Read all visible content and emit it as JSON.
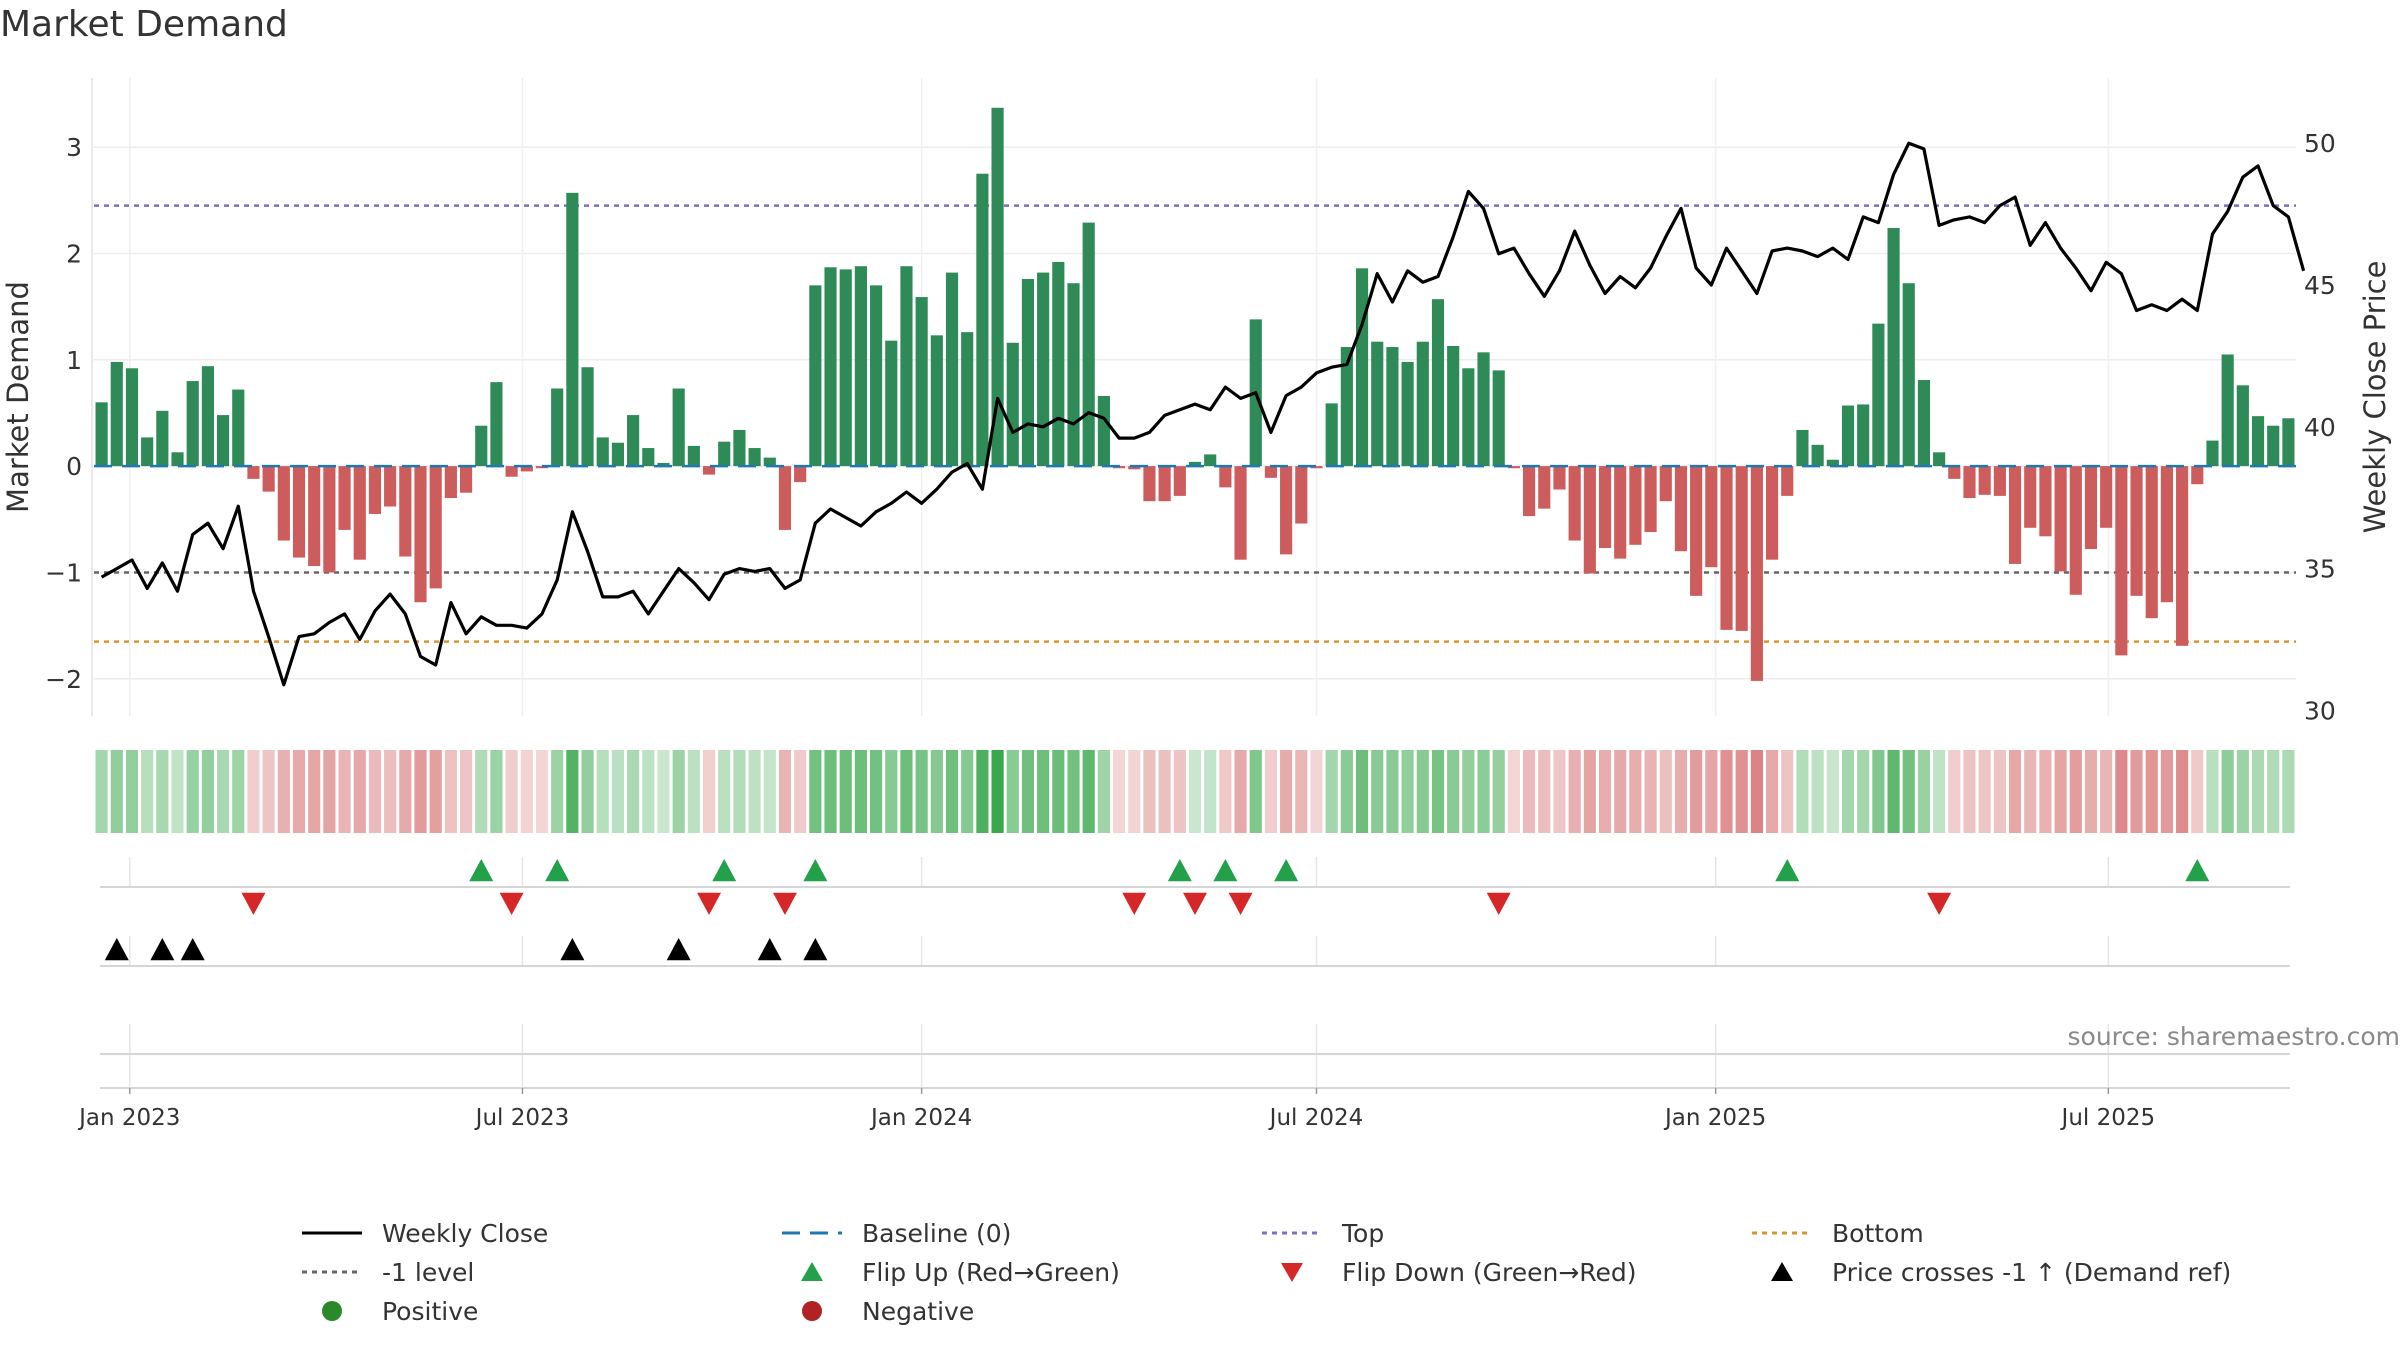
{
  "title": "Market Demand",
  "source": "source: sharemaestro.com",
  "legend": [
    {
      "label": "Weekly Close",
      "kind": "line",
      "color": "#000000",
      "dash": ""
    },
    {
      "label": "Baseline (0)",
      "kind": "line",
      "color": "#1f77b4",
      "dash": "18 10"
    },
    {
      "label": "Top",
      "kind": "line",
      "color": "#7b6fc2",
      "dash": "5 5"
    },
    {
      "label": "Bottom",
      "kind": "line",
      "color": "#d9952b",
      "dash": "5 5"
    },
    {
      "label": "-1 level",
      "kind": "line",
      "color": "#666666",
      "dash": "5 5"
    },
    {
      "label": "Flip Up (Red→Green)",
      "kind": "tri-up",
      "color": "#22a04a"
    },
    {
      "label": "Flip Down (Green→Red)",
      "kind": "tri-down",
      "color": "#d62728"
    },
    {
      "label": "Price crosses -1 ↑ (Demand ref)",
      "kind": "tri-up",
      "color": "#000000"
    },
    {
      "label": "Positive",
      "kind": "dot",
      "color": "#2a8a2a"
    },
    {
      "label": "Negative",
      "kind": "dot",
      "color": "#b22222"
    }
  ],
  "chart_data": {
    "type": "bar",
    "x_ticks": [
      "Jan 2023",
      "Jul 2023",
      "Jan 2024",
      "Jul 2024",
      "Jan 2025",
      "Jul 2025"
    ],
    "x_start": "2022-12-19",
    "ylabel": "Market Demand",
    "ylim": [
      -2.35,
      3.65
    ],
    "yticks": [
      -2,
      -1,
      0,
      1,
      2,
      3
    ],
    "y2label": "Weekly Close Price",
    "y2lim": [
      29.8,
      52.3
    ],
    "y2ticks": [
      30,
      35,
      40,
      45,
      50
    ],
    "reference_lines": {
      "top": 2.45,
      "bottom": -1.65,
      "minus_one": -1.0,
      "baseline": 0
    },
    "colors": {
      "positive": "#2e8b57",
      "negative": "#cd5c5c",
      "price": "#000000",
      "flip_up": "#22a04a",
      "flip_down": "#d62728",
      "cross": "#000000"
    },
    "demand": [
      0.6,
      0.98,
      0.92,
      0.27,
      0.52,
      0.13,
      0.8,
      0.94,
      0.48,
      0.72,
      -0.12,
      -0.24,
      -0.7,
      -0.86,
      -0.94,
      -1.0,
      -0.6,
      -0.88,
      -0.45,
      -0.38,
      -0.85,
      -1.28,
      -1.15,
      -0.3,
      -0.25,
      0.38,
      0.79,
      -0.1,
      -0.05,
      -0.02,
      0.73,
      2.57,
      0.93,
      0.27,
      0.22,
      0.48,
      0.17,
      0.03,
      0.73,
      0.19,
      -0.08,
      0.23,
      0.34,
      0.17,
      0.08,
      -0.6,
      -0.15,
      1.7,
      1.87,
      1.85,
      1.88,
      1.7,
      1.18,
      1.88,
      1.59,
      1.23,
      1.82,
      1.26,
      2.75,
      3.37,
      1.16,
      1.76,
      1.82,
      1.92,
      1.72,
      2.29,
      0.66,
      -0.02,
      -0.03,
      -0.33,
      -0.33,
      -0.28,
      0.04,
      0.11,
      -0.2,
      -0.88,
      1.38,
      -0.11,
      -0.83,
      -0.54,
      -0.02,
      0.59,
      1.12,
      1.86,
      1.17,
      1.12,
      0.98,
      1.17,
      1.57,
      1.13,
      0.92,
      1.07,
      0.9,
      -0.02,
      -0.47,
      -0.4,
      -0.22,
      -0.7,
      -1.01,
      -0.77,
      -0.87,
      -0.74,
      -0.62,
      -0.33,
      -0.8,
      -1.22,
      -0.95,
      -1.54,
      -1.55,
      -2.02,
      -0.88,
      -0.28,
      0.34,
      0.2,
      0.06,
      0.57,
      0.58,
      1.34,
      2.24,
      1.72,
      0.81,
      0.13,
      -0.12,
      -0.3,
      -0.27,
      -0.28,
      -0.92,
      -0.58,
      -0.66,
      -0.99,
      -1.21,
      -0.78,
      -0.58,
      -1.78,
      -1.22,
      -1.43,
      -1.28,
      -1.69,
      -0.17,
      0.24,
      1.05,
      0.76,
      0.47,
      0.38,
      0.45
    ],
    "close": [
      34.7,
      35.0,
      35.3,
      34.3,
      35.2,
      34.2,
      36.2,
      36.6,
      35.7,
      37.2,
      34.2,
      32.6,
      30.9,
      32.6,
      32.7,
      33.1,
      33.4,
      32.5,
      33.5,
      34.1,
      33.4,
      31.9,
      31.6,
      33.8,
      32.7,
      33.3,
      33.0,
      33.0,
      32.9,
      33.4,
      34.6,
      37.0,
      35.6,
      34.0,
      34.0,
      34.2,
      33.4,
      34.2,
      35.0,
      34.5,
      33.9,
      34.8,
      35.0,
      34.9,
      35.0,
      34.3,
      34.6,
      36.6,
      37.1,
      36.8,
      36.5,
      37.0,
      37.3,
      37.7,
      37.3,
      37.8,
      38.4,
      38.7,
      37.8,
      41.0,
      39.8,
      40.1,
      40.0,
      40.3,
      40.1,
      40.5,
      40.3,
      39.6,
      39.6,
      39.8,
      40.4,
      40.6,
      40.8,
      40.6,
      41.4,
      41.0,
      41.2,
      39.8,
      41.1,
      41.4,
      41.9,
      42.1,
      42.2,
      43.6,
      45.4,
      44.4,
      45.5,
      45.1,
      45.3,
      46.7,
      48.3,
      47.7,
      46.1,
      46.3,
      45.4,
      44.6,
      45.5,
      46.9,
      45.7,
      44.7,
      45.3,
      44.9,
      45.6,
      46.7,
      47.7,
      45.6,
      45.0,
      46.3,
      45.5,
      44.7,
      46.2,
      46.3,
      46.2,
      46.0,
      46.3,
      45.9,
      47.4,
      47.2,
      48.9,
      50.0,
      49.8,
      47.1,
      47.3,
      47.4,
      47.2,
      47.8,
      48.1,
      46.4,
      47.2,
      46.3,
      45.6,
      44.8,
      45.8,
      45.4,
      44.1,
      44.3,
      44.1,
      44.5,
      44.1,
      46.8,
      47.6,
      48.8,
      49.2,
      47.8,
      47.4,
      45.5
    ],
    "flip_up": [
      25,
      30,
      41,
      47,
      71,
      74,
      78,
      111,
      138
    ],
    "flip_down": [
      10,
      27,
      40,
      45,
      68,
      72,
      75,
      92,
      121
    ],
    "price_cross_up": [
      1,
      4,
      6,
      31,
      38,
      44,
      47
    ]
  }
}
